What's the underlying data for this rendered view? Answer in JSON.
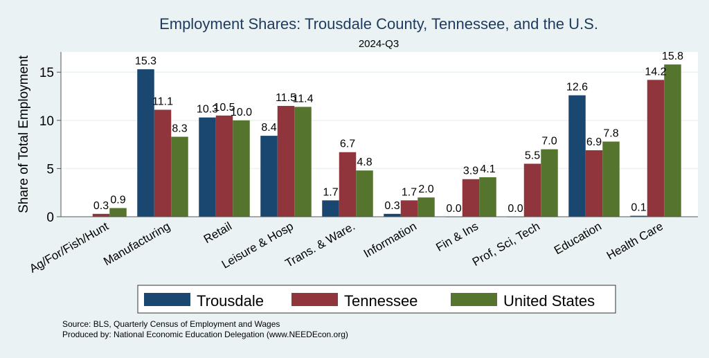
{
  "chart_data": {
    "type": "bar",
    "title": "Employment Shares: Trousdale County, Tennessee, and the U.S.",
    "subtitle": "2024-Q3",
    "xlabel": "",
    "ylabel": "Share of Total Employment",
    "ylim": [
      0,
      17.1
    ],
    "yticks": [
      0,
      5,
      10,
      15
    ],
    "grid": true,
    "legend_position": "bottom",
    "categories": [
      "Ag/For/Fish/Hunt",
      "Manufacturing",
      "Retail",
      "Leisure & Hosp",
      "Trans. & Ware.",
      "Information",
      "Fin & Ins",
      "Prof, Sci, Tech",
      "Education",
      "Health Care"
    ],
    "series": [
      {
        "name": "Trousdale",
        "color": "#1a476f",
        "values": [
          null,
          15.3,
          10.3,
          8.4,
          1.7,
          0.3,
          0.0,
          0.0,
          12.6,
          0.1
        ]
      },
      {
        "name": "Tennessee",
        "color": "#90353b",
        "values": [
          0.3,
          11.1,
          10.5,
          11.5,
          6.7,
          1.7,
          3.9,
          5.5,
          6.9,
          14.2
        ]
      },
      {
        "name": "United States",
        "color": "#55752f",
        "values": [
          0.9,
          8.3,
          10.0,
          11.4,
          4.8,
          2.0,
          4.1,
          7.0,
          7.8,
          15.8
        ]
      }
    ]
  },
  "notes": {
    "source": "Source: BLS, Quarterly Census of Employment and Wages",
    "produced": "Produced by: National Economic Education Delegation (www.NEEDEcon.org)"
  }
}
